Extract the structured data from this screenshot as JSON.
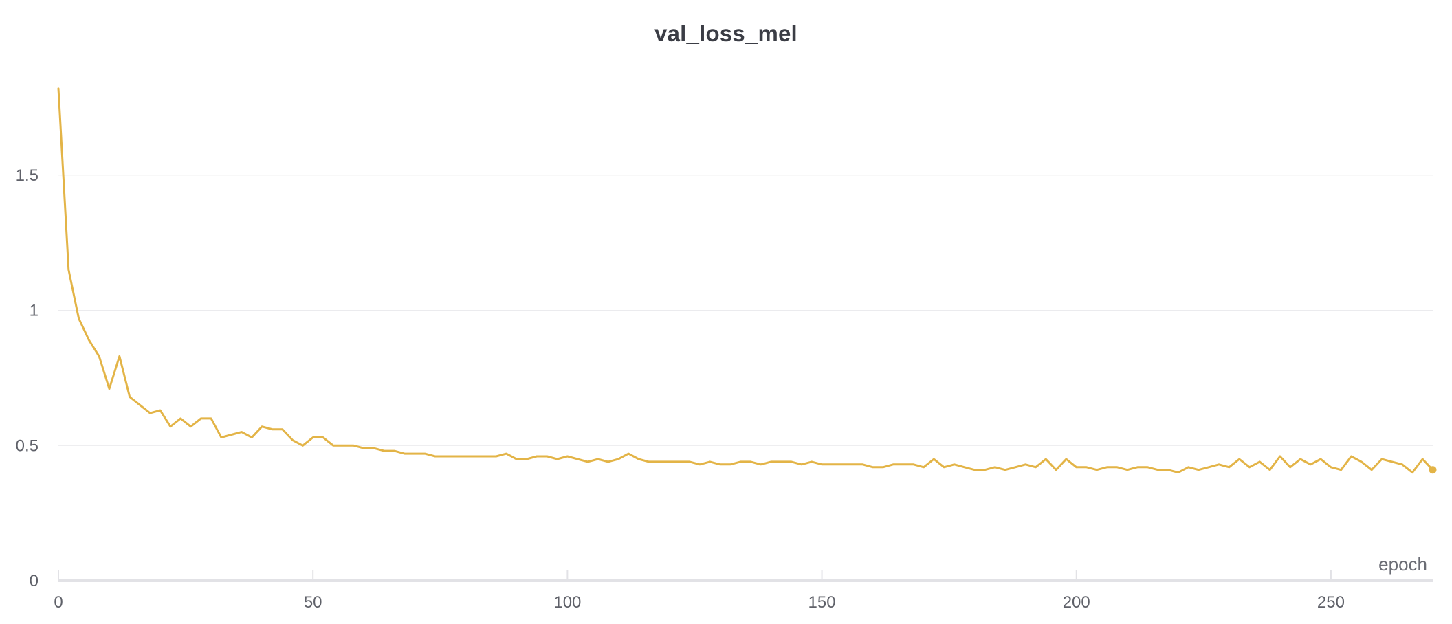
{
  "chart_data": {
    "type": "line",
    "title": "val_loss_mel",
    "xlabel": "epoch",
    "ylabel": "",
    "xlim": [
      0,
      270
    ],
    "ylim": [
      0,
      1.83
    ],
    "x_ticks": [
      "0",
      "50",
      "100",
      "150",
      "200",
      "250"
    ],
    "y_ticks": [
      "0",
      "0.5",
      "1",
      "1.5"
    ],
    "grid": "horizontal",
    "line_color": "#e3b447",
    "series": [
      {
        "x": [
          0,
          2,
          4,
          6,
          8,
          10,
          12,
          14,
          16,
          18,
          20,
          22,
          24,
          26,
          28,
          30,
          32,
          34,
          36,
          38,
          40,
          42,
          44,
          46,
          48,
          50,
          52,
          54,
          56,
          58,
          60,
          62,
          64,
          66,
          68,
          70,
          72,
          74,
          76,
          78,
          80,
          82,
          84,
          86,
          88,
          90,
          92,
          94,
          96,
          98,
          100,
          102,
          104,
          106,
          108,
          110,
          112,
          114,
          116,
          118,
          120,
          122,
          124,
          126,
          128,
          130,
          132,
          134,
          136,
          138,
          140,
          142,
          144,
          146,
          148,
          150,
          152,
          154,
          156,
          158,
          160,
          162,
          164,
          166,
          168,
          170,
          172,
          174,
          176,
          178,
          180,
          182,
          184,
          186,
          188,
          190,
          192,
          194,
          196,
          198,
          200,
          202,
          204,
          206,
          208,
          210,
          212,
          214,
          216,
          218,
          220,
          222,
          224,
          226,
          228,
          230,
          232,
          234,
          236,
          238,
          240,
          242,
          244,
          246,
          248,
          250,
          252,
          254,
          256,
          258,
          260,
          262,
          264,
          266,
          268,
          270
        ],
        "values": [
          1.82,
          1.15,
          0.97,
          0.89,
          0.83,
          0.71,
          0.83,
          0.68,
          0.65,
          0.62,
          0.63,
          0.57,
          0.6,
          0.57,
          0.6,
          0.6,
          0.53,
          0.54,
          0.55,
          0.53,
          0.57,
          0.56,
          0.56,
          0.52,
          0.5,
          0.53,
          0.53,
          0.5,
          0.5,
          0.5,
          0.49,
          0.49,
          0.48,
          0.48,
          0.47,
          0.47,
          0.47,
          0.46,
          0.46,
          0.46,
          0.46,
          0.46,
          0.46,
          0.46,
          0.47,
          0.45,
          0.45,
          0.46,
          0.46,
          0.45,
          0.46,
          0.45,
          0.44,
          0.45,
          0.44,
          0.45,
          0.47,
          0.45,
          0.44,
          0.44,
          0.44,
          0.44,
          0.44,
          0.43,
          0.44,
          0.43,
          0.43,
          0.44,
          0.44,
          0.43,
          0.44,
          0.44,
          0.44,
          0.43,
          0.44,
          0.43,
          0.43,
          0.43,
          0.43,
          0.43,
          0.42,
          0.42,
          0.43,
          0.43,
          0.43,
          0.42,
          0.45,
          0.42,
          0.43,
          0.42,
          0.41,
          0.41,
          0.42,
          0.41,
          0.42,
          0.43,
          0.42,
          0.45,
          0.41,
          0.45,
          0.42,
          0.42,
          0.41,
          0.42,
          0.42,
          0.41,
          0.42,
          0.42,
          0.41,
          0.41,
          0.4,
          0.42,
          0.41,
          0.42,
          0.43,
          0.42,
          0.45,
          0.42,
          0.44,
          0.41,
          0.46,
          0.42,
          0.45,
          0.43,
          0.45,
          0.42,
          0.41,
          0.46,
          0.44,
          0.41,
          0.45,
          0.44,
          0.43,
          0.4,
          0.45,
          0.41
        ]
      }
    ]
  }
}
